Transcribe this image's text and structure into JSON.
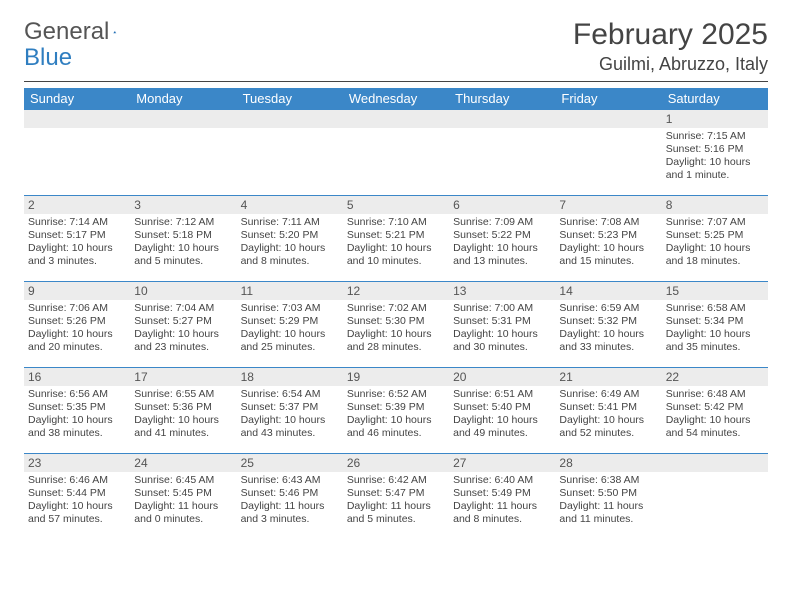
{
  "logo": {
    "text1": "General",
    "text2": "Blue"
  },
  "title": "February 2025",
  "location": "Guilmi, Abruzzo, Italy",
  "colors": {
    "header_bg": "#3b87c8",
    "header_text": "#ffffff",
    "daynum_bg": "#ececec",
    "row_border": "#3b87c8",
    "text": "#444444"
  },
  "weekdays": [
    "Sunday",
    "Monday",
    "Tuesday",
    "Wednesday",
    "Thursday",
    "Friday",
    "Saturday"
  ],
  "weeks": [
    [
      {
        "day": "",
        "sunrise": "",
        "sunset": "",
        "daylight": ""
      },
      {
        "day": "",
        "sunrise": "",
        "sunset": "",
        "daylight": ""
      },
      {
        "day": "",
        "sunrise": "",
        "sunset": "",
        "daylight": ""
      },
      {
        "day": "",
        "sunrise": "",
        "sunset": "",
        "daylight": ""
      },
      {
        "day": "",
        "sunrise": "",
        "sunset": "",
        "daylight": ""
      },
      {
        "day": "",
        "sunrise": "",
        "sunset": "",
        "daylight": ""
      },
      {
        "day": "1",
        "sunrise": "Sunrise: 7:15 AM",
        "sunset": "Sunset: 5:16 PM",
        "daylight": "Daylight: 10 hours and 1 minute."
      }
    ],
    [
      {
        "day": "2",
        "sunrise": "Sunrise: 7:14 AM",
        "sunset": "Sunset: 5:17 PM",
        "daylight": "Daylight: 10 hours and 3 minutes."
      },
      {
        "day": "3",
        "sunrise": "Sunrise: 7:12 AM",
        "sunset": "Sunset: 5:18 PM",
        "daylight": "Daylight: 10 hours and 5 minutes."
      },
      {
        "day": "4",
        "sunrise": "Sunrise: 7:11 AM",
        "sunset": "Sunset: 5:20 PM",
        "daylight": "Daylight: 10 hours and 8 minutes."
      },
      {
        "day": "5",
        "sunrise": "Sunrise: 7:10 AM",
        "sunset": "Sunset: 5:21 PM",
        "daylight": "Daylight: 10 hours and 10 minutes."
      },
      {
        "day": "6",
        "sunrise": "Sunrise: 7:09 AM",
        "sunset": "Sunset: 5:22 PM",
        "daylight": "Daylight: 10 hours and 13 minutes."
      },
      {
        "day": "7",
        "sunrise": "Sunrise: 7:08 AM",
        "sunset": "Sunset: 5:23 PM",
        "daylight": "Daylight: 10 hours and 15 minutes."
      },
      {
        "day": "8",
        "sunrise": "Sunrise: 7:07 AM",
        "sunset": "Sunset: 5:25 PM",
        "daylight": "Daylight: 10 hours and 18 minutes."
      }
    ],
    [
      {
        "day": "9",
        "sunrise": "Sunrise: 7:06 AM",
        "sunset": "Sunset: 5:26 PM",
        "daylight": "Daylight: 10 hours and 20 minutes."
      },
      {
        "day": "10",
        "sunrise": "Sunrise: 7:04 AM",
        "sunset": "Sunset: 5:27 PM",
        "daylight": "Daylight: 10 hours and 23 minutes."
      },
      {
        "day": "11",
        "sunrise": "Sunrise: 7:03 AM",
        "sunset": "Sunset: 5:29 PM",
        "daylight": "Daylight: 10 hours and 25 minutes."
      },
      {
        "day": "12",
        "sunrise": "Sunrise: 7:02 AM",
        "sunset": "Sunset: 5:30 PM",
        "daylight": "Daylight: 10 hours and 28 minutes."
      },
      {
        "day": "13",
        "sunrise": "Sunrise: 7:00 AM",
        "sunset": "Sunset: 5:31 PM",
        "daylight": "Daylight: 10 hours and 30 minutes."
      },
      {
        "day": "14",
        "sunrise": "Sunrise: 6:59 AM",
        "sunset": "Sunset: 5:32 PM",
        "daylight": "Daylight: 10 hours and 33 minutes."
      },
      {
        "day": "15",
        "sunrise": "Sunrise: 6:58 AM",
        "sunset": "Sunset: 5:34 PM",
        "daylight": "Daylight: 10 hours and 35 minutes."
      }
    ],
    [
      {
        "day": "16",
        "sunrise": "Sunrise: 6:56 AM",
        "sunset": "Sunset: 5:35 PM",
        "daylight": "Daylight: 10 hours and 38 minutes."
      },
      {
        "day": "17",
        "sunrise": "Sunrise: 6:55 AM",
        "sunset": "Sunset: 5:36 PM",
        "daylight": "Daylight: 10 hours and 41 minutes."
      },
      {
        "day": "18",
        "sunrise": "Sunrise: 6:54 AM",
        "sunset": "Sunset: 5:37 PM",
        "daylight": "Daylight: 10 hours and 43 minutes."
      },
      {
        "day": "19",
        "sunrise": "Sunrise: 6:52 AM",
        "sunset": "Sunset: 5:39 PM",
        "daylight": "Daylight: 10 hours and 46 minutes."
      },
      {
        "day": "20",
        "sunrise": "Sunrise: 6:51 AM",
        "sunset": "Sunset: 5:40 PM",
        "daylight": "Daylight: 10 hours and 49 minutes."
      },
      {
        "day": "21",
        "sunrise": "Sunrise: 6:49 AM",
        "sunset": "Sunset: 5:41 PM",
        "daylight": "Daylight: 10 hours and 52 minutes."
      },
      {
        "day": "22",
        "sunrise": "Sunrise: 6:48 AM",
        "sunset": "Sunset: 5:42 PM",
        "daylight": "Daylight: 10 hours and 54 minutes."
      }
    ],
    [
      {
        "day": "23",
        "sunrise": "Sunrise: 6:46 AM",
        "sunset": "Sunset: 5:44 PM",
        "daylight": "Daylight: 10 hours and 57 minutes."
      },
      {
        "day": "24",
        "sunrise": "Sunrise: 6:45 AM",
        "sunset": "Sunset: 5:45 PM",
        "daylight": "Daylight: 11 hours and 0 minutes."
      },
      {
        "day": "25",
        "sunrise": "Sunrise: 6:43 AM",
        "sunset": "Sunset: 5:46 PM",
        "daylight": "Daylight: 11 hours and 3 minutes."
      },
      {
        "day": "26",
        "sunrise": "Sunrise: 6:42 AM",
        "sunset": "Sunset: 5:47 PM",
        "daylight": "Daylight: 11 hours and 5 minutes."
      },
      {
        "day": "27",
        "sunrise": "Sunrise: 6:40 AM",
        "sunset": "Sunset: 5:49 PM",
        "daylight": "Daylight: 11 hours and 8 minutes."
      },
      {
        "day": "28",
        "sunrise": "Sunrise: 6:38 AM",
        "sunset": "Sunset: 5:50 PM",
        "daylight": "Daylight: 11 hours and 11 minutes."
      },
      {
        "day": "",
        "sunrise": "",
        "sunset": "",
        "daylight": ""
      }
    ]
  ]
}
